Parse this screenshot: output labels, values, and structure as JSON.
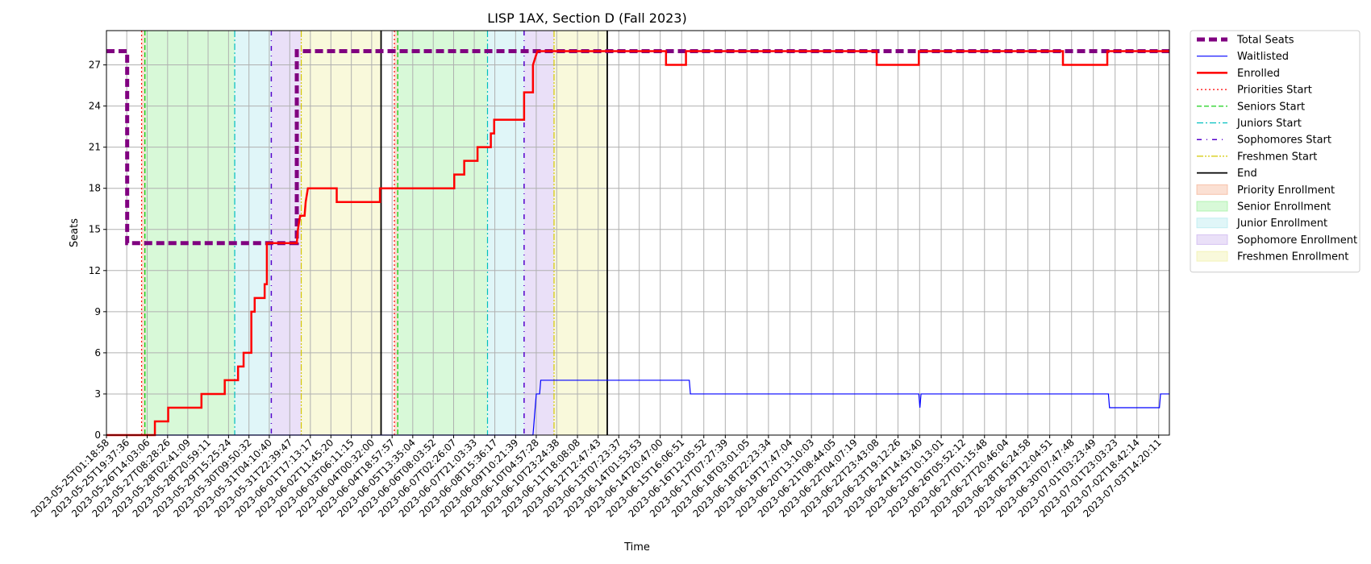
{
  "chart_data": {
    "type": "line",
    "title": "LISP 1AX, Section D (Fall 2023)",
    "xlabel": "Time",
    "ylabel": "Seats",
    "x_range": [
      "2023-05-25T01:18:58",
      "2023-07-04T00:00:00"
    ],
    "ylim": [
      0,
      29.5
    ],
    "y_ticks": [
      0,
      3,
      6,
      9,
      12,
      15,
      18,
      21,
      24,
      27
    ],
    "grid": true,
    "legend_position": "outside-right",
    "x_tick_labels": [
      "2023-05-25T01:18:58",
      "2023-05-25T19:37:36",
      "2023-05-26T14:03:06",
      "2023-05-27T08:28:26",
      "2023-05-28T02:41:09",
      "2023-05-28T20:59:11",
      "2023-05-29T15:25:24",
      "2023-05-30T09:50:32",
      "2023-05-31T04:10:40",
      "2023-05-31T22:39:47",
      "2023-06-01T17:13:17",
      "2023-06-02T11:45:20",
      "2023-06-03T06:11:15",
      "2023-06-04T00:32:00",
      "2023-06-04T18:57:57",
      "2023-06-05T13:35:04",
      "2023-06-06T08:03:52",
      "2023-06-07T02:26:07",
      "2023-06-07T21:03:33",
      "2023-06-08T15:36:17",
      "2023-06-09T10:21:39",
      "2023-06-10T04:57:28",
      "2023-06-10T23:24:38",
      "2023-06-11T18:08:08",
      "2023-06-12T12:47:43",
      "2023-06-13T07:23:37",
      "2023-06-14T01:53:53",
      "2023-06-14T20:47:00",
      "2023-06-15T16:06:51",
      "2023-06-16T12:05:52",
      "2023-06-17T07:27:39",
      "2023-06-18T03:01:05",
      "2023-06-18T22:23:34",
      "2023-06-19T17:47:04",
      "2023-06-20T13:10:03",
      "2023-06-21T08:44:05",
      "2023-06-22T04:07:19",
      "2023-06-22T23:43:08",
      "2023-06-23T19:12:26",
      "2023-06-24T14:43:40",
      "2023-06-25T10:13:01",
      "2023-06-26T05:52:12",
      "2023-06-27T01:15:48",
      "2023-06-27T20:46:04",
      "2023-06-28T16:24:58",
      "2023-06-29T12:04:51",
      "2023-06-30T07:47:48",
      "2023-07-01T03:23:49",
      "2023-07-01T23:03:23",
      "2023-07-02T18:42:14",
      "2023-07-03T14:20:11"
    ],
    "phase_bands": [
      {
        "name": "Priority Enrollment",
        "from": "2023-05-26T09:00:00",
        "to": "2023-05-26T12:00:00",
        "color": "#f4a582"
      },
      {
        "name": "Senior Enrollment",
        "from": "2023-05-26T12:00:00",
        "to": "2023-05-29T21:00:00",
        "color": "#90ee90"
      },
      {
        "name": "Junior Enrollment",
        "from": "2023-05-29T21:00:00",
        "to": "2023-05-31T06:00:00",
        "color": "#a6e6ec"
      },
      {
        "name": "Sophomore Enrollment",
        "from": "2023-05-31T06:00:00",
        "to": "2023-06-01T09:00:00",
        "color": "#c3a6ec"
      },
      {
        "name": "Freshmen Enrollment",
        "from": "2023-06-01T09:00:00",
        "to": "2023-06-04T09:00:00",
        "color": "#eeee99"
      },
      {
        "name": "Priority Enrollment",
        "from": "2023-06-04T21:00:00",
        "to": "2023-06-05T00:00:00",
        "color": "#f4a582"
      },
      {
        "name": "Senior Enrollment",
        "from": "2023-06-05T00:00:00",
        "to": "2023-06-08T09:00:00",
        "color": "#90ee90"
      },
      {
        "name": "Junior Enrollment",
        "from": "2023-06-08T09:00:00",
        "to": "2023-06-09T18:00:00",
        "color": "#a6e6ec"
      },
      {
        "name": "Sophomore Enrollment",
        "from": "2023-06-09T18:00:00",
        "to": "2023-06-10T21:00:00",
        "color": "#c3a6ec"
      },
      {
        "name": "Freshmen Enrollment",
        "from": "2023-06-10T21:00:00",
        "to": "2023-06-12T21:00:00",
        "color": "#eeee99"
      }
    ],
    "markers": [
      {
        "name": "Priorities Start",
        "x": [
          "2023-05-26T09:00:00",
          "2023-06-04T21:00:00"
        ]
      },
      {
        "name": "Seniors Start",
        "x": [
          "2023-05-26T12:00:00",
          "2023-06-05T00:00:00"
        ]
      },
      {
        "name": "Juniors Start",
        "x": [
          "2023-05-29T21:00:00",
          "2023-06-08T09:00:00"
        ]
      },
      {
        "name": "Sophomores Start",
        "x": [
          "2023-05-31T06:00:00",
          "2023-06-09T18:00:00"
        ]
      },
      {
        "name": "Freshmen Start",
        "x": [
          "2023-06-01T09:00:00",
          "2023-06-10T21:00:00"
        ]
      },
      {
        "name": "End",
        "x": [
          "2023-06-04T09:00:00",
          "2023-06-12T21:00:00"
        ]
      }
    ],
    "series": [
      {
        "name": "Total Seats",
        "color": "#800080",
        "points": [
          [
            "2023-05-25T01:18:58",
            28
          ],
          [
            "2023-05-25T20:00:00",
            28
          ],
          [
            "2023-05-25T20:00:00",
            14
          ],
          [
            "2023-06-01T05:00:00",
            14
          ],
          [
            "2023-06-01T05:00:00",
            28
          ],
          [
            "2023-07-04T00:00:00",
            28
          ]
        ]
      },
      {
        "name": "Waitlisted",
        "color": "#0000ff",
        "points": [
          [
            "2023-05-25T01:18:58",
            0
          ],
          [
            "2023-06-10T02:00:00",
            0
          ],
          [
            "2023-06-10T03:00:00",
            1
          ],
          [
            "2023-06-10T04:00:00",
            2
          ],
          [
            "2023-06-10T05:00:00",
            3
          ],
          [
            "2023-06-10T08:00:00",
            3
          ],
          [
            "2023-06-10T09:00:00",
            4
          ],
          [
            "2023-06-15T23:00:00",
            4
          ],
          [
            "2023-06-16T00:00:00",
            3
          ],
          [
            "2023-06-24T14:00:00",
            3
          ],
          [
            "2023-06-24T15:00:00",
            2
          ],
          [
            "2023-06-24T16:00:00",
            3
          ],
          [
            "2023-07-01T17:00:00",
            3
          ],
          [
            "2023-07-01T18:00:00",
            2
          ],
          [
            "2023-07-03T15:00:00",
            2
          ],
          [
            "2023-07-03T16:00:00",
            3
          ],
          [
            "2023-07-04T00:00:00",
            3
          ]
        ]
      },
      {
        "name": "Enrolled",
        "color": "#ff0000",
        "points": [
          [
            "2023-05-25T01:18:58",
            0
          ],
          [
            "2023-05-26T21:00:00",
            0
          ],
          [
            "2023-05-26T21:00:00",
            1
          ],
          [
            "2023-05-27T09:00:00",
            1
          ],
          [
            "2023-05-27T09:00:00",
            2
          ],
          [
            "2023-05-28T15:00:00",
            2
          ],
          [
            "2023-05-28T15:00:00",
            3
          ],
          [
            "2023-05-29T12:00:00",
            3
          ],
          [
            "2023-05-29T12:00:00",
            4
          ],
          [
            "2023-05-30T00:00:00",
            4
          ],
          [
            "2023-05-30T00:00:00",
            5
          ],
          [
            "2023-05-30T05:00:00",
            5
          ],
          [
            "2023-05-30T05:00:00",
            6
          ],
          [
            "2023-05-30T12:00:00",
            6
          ],
          [
            "2023-05-30T12:00:00",
            9
          ],
          [
            "2023-05-30T15:00:00",
            9
          ],
          [
            "2023-05-30T15:00:00",
            10
          ],
          [
            "2023-05-31T00:00:00",
            10
          ],
          [
            "2023-05-31T00:00:00",
            11
          ],
          [
            "2023-05-31T02:00:00",
            11
          ],
          [
            "2023-05-31T02:00:00",
            14
          ],
          [
            "2023-06-01T05:00:00",
            14
          ],
          [
            "2023-06-01T06:00:00",
            15
          ],
          [
            "2023-06-01T08:00:00",
            16
          ],
          [
            "2023-06-01T12:00:00",
            16
          ],
          [
            "2023-06-01T13:00:00",
            17
          ],
          [
            "2023-06-01T15:00:00",
            18
          ],
          [
            "2023-06-02T17:00:00",
            18
          ],
          [
            "2023-06-02T17:00:00",
            17
          ],
          [
            "2023-06-04T08:00:00",
            17
          ],
          [
            "2023-06-04T08:00:00",
            18
          ],
          [
            "2023-06-07T03:00:00",
            18
          ],
          [
            "2023-06-07T03:00:00",
            19
          ],
          [
            "2023-06-07T12:00:00",
            19
          ],
          [
            "2023-06-07T12:00:00",
            20
          ],
          [
            "2023-06-08T00:00:00",
            20
          ],
          [
            "2023-06-08T00:00:00",
            21
          ],
          [
            "2023-06-08T12:00:00",
            21
          ],
          [
            "2023-06-08T12:00:00",
            22
          ],
          [
            "2023-06-08T15:00:00",
            22
          ],
          [
            "2023-06-08T15:00:00",
            23
          ],
          [
            "2023-06-09T18:00:00",
            23
          ],
          [
            "2023-06-09T18:00:00",
            25
          ],
          [
            "2023-06-10T02:00:00",
            25
          ],
          [
            "2023-06-10T02:00:00",
            27
          ],
          [
            "2023-06-10T06:00:00",
            28
          ],
          [
            "2023-06-15T02:00:00",
            28
          ],
          [
            "2023-06-15T02:00:00",
            27
          ],
          [
            "2023-06-15T20:00:00",
            27
          ],
          [
            "2023-06-15T20:00:00",
            28
          ],
          [
            "2023-06-23T00:00:00",
            28
          ],
          [
            "2023-06-23T00:00:00",
            27
          ],
          [
            "2023-06-24T14:00:00",
            27
          ],
          [
            "2023-06-24T14:00:00",
            28
          ],
          [
            "2023-06-30T00:00:00",
            28
          ],
          [
            "2023-06-30T00:00:00",
            27
          ],
          [
            "2023-07-01T16:00:00",
            27
          ],
          [
            "2023-07-01T16:00:00",
            28
          ],
          [
            "2023-07-04T00:00:00",
            28
          ]
        ]
      }
    ],
    "legend": [
      {
        "label": "Total Seats",
        "kind": "line",
        "color": "#800080",
        "width": 5,
        "dash": "10,5"
      },
      {
        "label": "Waitlisted",
        "kind": "line",
        "color": "#0000ff",
        "width": 1.2,
        "dash": ""
      },
      {
        "label": "Enrolled",
        "kind": "line",
        "color": "#ff0000",
        "width": 2.5,
        "dash": ""
      },
      {
        "label": "Priorities Start",
        "kind": "line",
        "color": "#ff0000",
        "width": 1.2,
        "dash": "2,3"
      },
      {
        "label": "Seniors Start",
        "kind": "line",
        "color": "#00cc00",
        "width": 1.2,
        "dash": "6,3"
      },
      {
        "label": "Juniors Start",
        "kind": "line",
        "color": "#00bfbf",
        "width": 1.2,
        "dash": "8,3,2,3"
      },
      {
        "label": "Sophomores Start",
        "kind": "line",
        "color": "#5500cc",
        "width": 1.5,
        "dash": "6,6,1,6"
      },
      {
        "label": "Freshmen Start",
        "kind": "line",
        "color": "#d4c800",
        "width": 1.2,
        "dash": "8,2,2,2,2,2"
      },
      {
        "label": "End",
        "kind": "line",
        "color": "#000000",
        "width": 1.8,
        "dash": ""
      },
      {
        "label": "Priority Enrollment",
        "kind": "patch",
        "color": "#f4a582"
      },
      {
        "label": "Senior Enrollment",
        "kind": "patch",
        "color": "#90ee90"
      },
      {
        "label": "Junior Enrollment",
        "kind": "patch",
        "color": "#a6e6ec"
      },
      {
        "label": "Sophomore Enrollment",
        "kind": "patch",
        "color": "#c3a6ec"
      },
      {
        "label": "Freshmen Enrollment",
        "kind": "patch",
        "color": "#eeee99"
      }
    ]
  }
}
